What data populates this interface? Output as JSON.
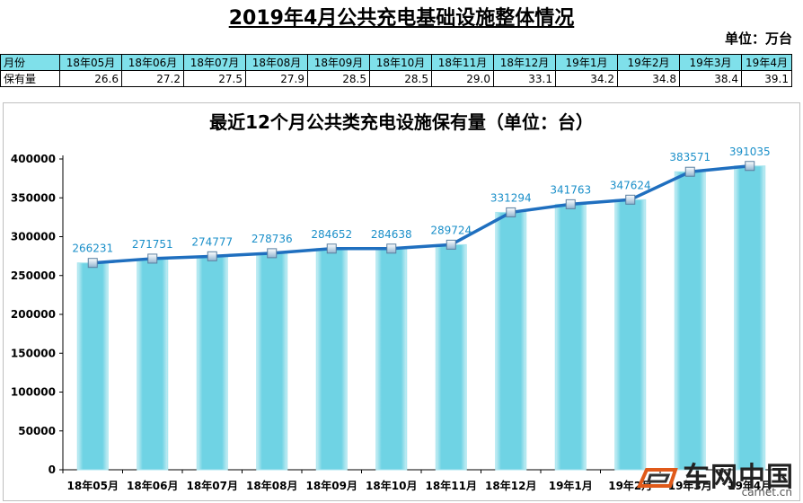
{
  "page": {
    "title": "2019年4月公共充电基础设施整体情况",
    "unit_note": "单位：万台"
  },
  "summary_table": {
    "row_label_month": "月份",
    "row_label_value": "保有量",
    "months": [
      "18年05月",
      "18年06月",
      "18年07月",
      "18年08月",
      "18年09月",
      "18年10月",
      "18年11月",
      "18年12月",
      "19年1月",
      "19年2月",
      "19年3月",
      "19年4月"
    ],
    "values": [
      "26.6",
      "27.2",
      "27.5",
      "27.9",
      "28.5",
      "28.5",
      "29.0",
      "33.1",
      "34.2",
      "34.8",
      "38.4",
      "39.1"
    ]
  },
  "chart_data": {
    "type": "bar",
    "title": "最近12个月公共类充电设施保有量（单位：台）",
    "categories": [
      "18年05月",
      "18年06月",
      "18年07月",
      "18年08月",
      "18年09月",
      "18年10月",
      "18年11月",
      "18年12月",
      "19年1月",
      "19年2月",
      "19年3月",
      "19年4月"
    ],
    "values": [
      266231,
      271751,
      274777,
      278736,
      284652,
      284638,
      289724,
      331294,
      341763,
      347624,
      383571,
      391035
    ],
    "value_labels": [
      "266231",
      "271751",
      "274777",
      "278736",
      "284652",
      "284638",
      "289724",
      "331294",
      "341763",
      "347624",
      "383571",
      "391035"
    ],
    "overlay": "line",
    "ylim": [
      0,
      400000
    ],
    "yticks": [
      0,
      50000,
      100000,
      150000,
      200000,
      250000,
      300000,
      350000,
      400000
    ],
    "ytick_labels": [
      "0",
      "50000",
      "100000",
      "150000",
      "200000",
      "250000",
      "300000",
      "350000",
      "400000"
    ],
    "grid": false,
    "legend": "none",
    "colors": {
      "bar": "#6fd3e4",
      "bar_edge": "#a9e6ef",
      "line": "#1f6fbf",
      "label": "#1a8fc9"
    }
  },
  "watermark": {
    "text": "车网中国",
    "url": "carnet.cn",
    "icon": "car-logo-icon"
  }
}
